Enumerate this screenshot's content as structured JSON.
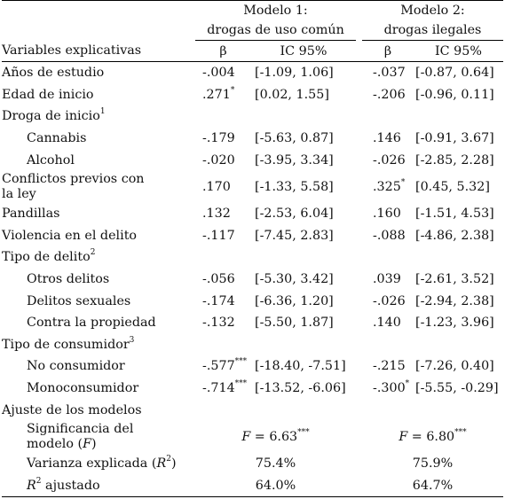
{
  "header": {
    "var_label": "Variables explicativas",
    "model1_line1": "Modelo 1:",
    "model1_line2": "drogas de uso común",
    "model2_line1": "Modelo 2:",
    "model2_line2": "drogas ilegales",
    "beta": "β",
    "ci": "IC 95%"
  },
  "rows": [
    {
      "label": "Años de estudio",
      "b1": "-.004",
      "s1": "",
      "ci1": "[-1.09, 1.06]",
      "b2": "-.037",
      "s2": "",
      "ci2": "[-0.87, 0.64]"
    },
    {
      "label": "Edad de inicio",
      "b1": ".271",
      "s1": "*",
      "ci1": "[0.02, 1.55]",
      "b2": "-.206",
      "s2": "",
      "ci2": "[-0.96, 0.11]"
    },
    {
      "label": "Droga de inicio",
      "sup": "1"
    },
    {
      "label": "Cannabis",
      "b1": "-.179",
      "s1": "",
      "ci1": "[-5.63, 0.87]",
      "b2": ".146",
      "s2": "",
      "ci2": "[-0.91, 3.67]"
    },
    {
      "label": "Alcohol",
      "b1": "-.020",
      "s1": "",
      "ci1": "[-3.95, 3.34]",
      "b2": "-.026",
      "s2": "",
      "ci2": "[-2.85, 2.28]"
    },
    {
      "label": "Conflictos previos con",
      "label2": "la ley",
      "b1": ".170",
      "s1": "",
      "ci1": "[-1.33, 5.58]",
      "b2": ".325",
      "s2": "*",
      "ci2": "[0.45, 5.32]"
    },
    {
      "label": "Pandillas",
      "b1": ".132",
      "s1": "",
      "ci1": "[-2.53, 6.04]",
      "b2": ".160",
      "s2": "",
      "ci2": "[-1.51, 4.53]"
    },
    {
      "label": "Violencia en el delito",
      "b1": "-.117",
      "s1": "",
      "ci1": "[-7.45, 2.83]",
      "b2": "-.088",
      "s2": "",
      "ci2": "[-4.86, 2.38]"
    },
    {
      "label": "Tipo de delito",
      "sup": "2"
    },
    {
      "label": "Otros delitos",
      "b1": "-.056",
      "s1": "",
      "ci1": "[-5.30, 3.42]",
      "b2": ".039",
      "s2": "",
      "ci2": "[-2.61, 3.52]"
    },
    {
      "label": "Delitos sexuales",
      "b1": "-.174",
      "s1": "",
      "ci1": "[-6.36, 1.20]",
      "b2": "-.026",
      "s2": "",
      "ci2": "[-2.94, 2.38]"
    },
    {
      "label": "Contra la propiedad",
      "b1": "-.132",
      "s1": "",
      "ci1": "[-5.50, 1.87]",
      "b2": ".140",
      "s2": "",
      "ci2": "[-1.23, 3.96]"
    },
    {
      "label": "Tipo de consumidor",
      "sup": "3"
    },
    {
      "label": "No consumidor",
      "b1": "-.577",
      "s1": "***",
      "ci1": "[-18.40, -7.51]",
      "b2": "-.215",
      "s2": "",
      "ci2": "[-7.26, 0.40]"
    },
    {
      "label": "Monoconsumidor",
      "b1": "-.714",
      "s1": "***",
      "ci1": "[-13.52, -6.06]",
      "b2": "-.300",
      "s2": "*",
      "ci2": "[-5.55, -0.29]"
    }
  ],
  "fit": {
    "section_label": "Ajuste de los modelos",
    "sig_label1": "Significancia del",
    "sig_label2_pre": "modelo (",
    "sig_label2_it": "F",
    "sig_label2_post": ")",
    "f_sym": "F",
    "f1_val": " = 6.63",
    "f1_sig": "***",
    "f2_val": " = 6.80",
    "f2_sig": "***",
    "var_label_pre": "Varianza explicada (",
    "var_label_it": "R",
    "var_label_sup": "2",
    "var_label_post": ")",
    "var1": "75.4%",
    "var2": "75.9%",
    "adj_label_it": "R",
    "adj_label_sup": "2",
    "adj_label_post": " ajustado",
    "adj1": "64.0%",
    "adj2": "64.7%"
  }
}
